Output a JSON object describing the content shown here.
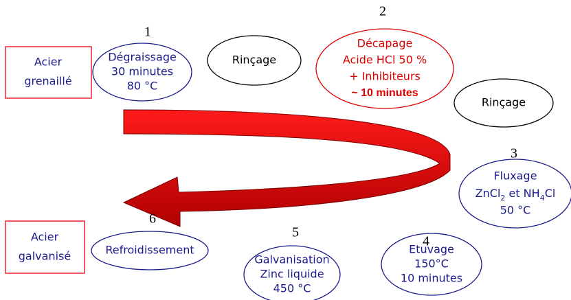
{
  "start_box": {
    "lines": [
      "Acier",
      "grenaillé"
    ]
  },
  "end_box": {
    "lines": [
      "Acier",
      "galvanisé"
    ]
  },
  "steps": [
    {
      "number": "1",
      "lines": [
        "Dégraissage",
        "30 minutes",
        "80 °C"
      ]
    },
    {
      "lines": [
        "Rinçage"
      ]
    },
    {
      "number": "2",
      "lines": [
        "Décapage",
        "Acide HCl 50 %",
        "+ Inhibiteurs",
        "~ 10 minutes"
      ]
    },
    {
      "lines": [
        "Rinçage"
      ]
    },
    {
      "number": "3",
      "lines": [
        "Fluxage"
      ],
      "formula": [
        "ZnCl",
        "2",
        " et NH",
        "4",
        "Cl"
      ],
      "temperature": "50 °C"
    },
    {
      "number": "4",
      "lines": [
        "Etuvage",
        "150°C",
        "10 minutes"
      ]
    },
    {
      "number": "5",
      "lines": [
        "Galvanisation",
        "Zinc liquide",
        "450 °C"
      ]
    },
    {
      "number": "6",
      "lines": [
        "Refroidissement"
      ]
    }
  ]
}
